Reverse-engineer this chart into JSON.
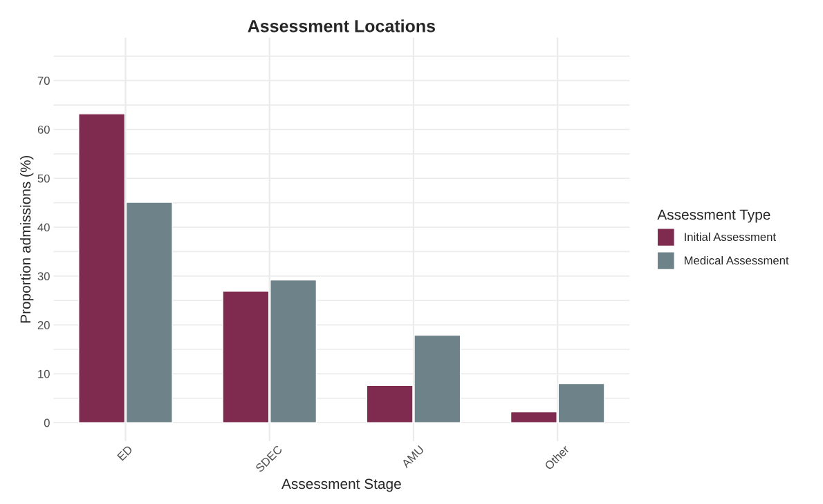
{
  "chart_data": {
    "type": "bar",
    "title": "Assessment Locations",
    "xlabel": "Assessment Stage",
    "ylabel": "Proportion admissions (%)",
    "legend_title": "Assessment Type",
    "categories": [
      "ED",
      "SDEC",
      "AMU",
      "Other"
    ],
    "series": [
      {
        "name": "Initial Assessment",
        "color": "#7f2a4f",
        "values": [
          63.2,
          26.9,
          7.6,
          2.2
        ]
      },
      {
        "name": "Medical Assessment",
        "color": "#6e8289",
        "values": [
          45.1,
          29.2,
          17.9,
          8.0
        ]
      }
    ],
    "ylim": [
      -3.75,
      78.75
    ],
    "yticks": [
      0,
      {
        "value": 5,
        "label": null
      },
      10,
      {
        "value": 15,
        "label": null
      },
      20,
      {
        "value": 25,
        "label": null
      },
      30,
      {
        "value": 35,
        "label": null
      },
      40,
      {
        "value": 45,
        "label": null
      },
      50,
      {
        "value": 55,
        "label": null
      },
      60,
      {
        "value": 65,
        "label": null
      },
      70,
      {
        "value": 75,
        "label": null
      }
    ],
    "grid": true,
    "legend": "right"
  }
}
